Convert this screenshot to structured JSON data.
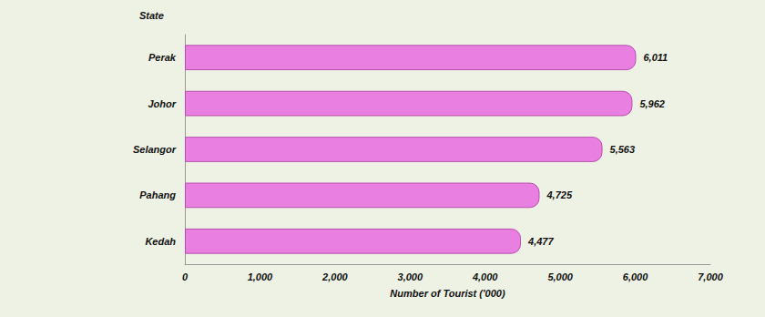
{
  "chart_data": {
    "type": "bar",
    "orientation": "horizontal",
    "y_label": "State",
    "x_label": "Number of Tourist ('000)",
    "categories": [
      "Perak",
      "Johor",
      "Selangor",
      "Pahang",
      "Kedah"
    ],
    "values": [
      6011,
      5962,
      5563,
      4725,
      4477
    ],
    "value_labels": [
      "6,011",
      "5,962",
      "5,563",
      "4,725",
      "4,477"
    ],
    "color": "#e97fe0",
    "xlim": [
      0,
      7000
    ],
    "xticks": [
      0,
      {
        "value": 1000,
        "label": "1,000"
      },
      {
        "value": 2000,
        "label": "2,000"
      },
      {
        "value": 3000,
        "label": "3,000"
      },
      {
        "value": 4000,
        "label": "4,000"
      },
      {
        "value": 5000,
        "label": "5,000"
      },
      {
        "value": 6000,
        "label": "6,000"
      },
      {
        "value": 7000,
        "label": "7,000"
      }
    ],
    "grid": false,
    "data_labels": true
  }
}
